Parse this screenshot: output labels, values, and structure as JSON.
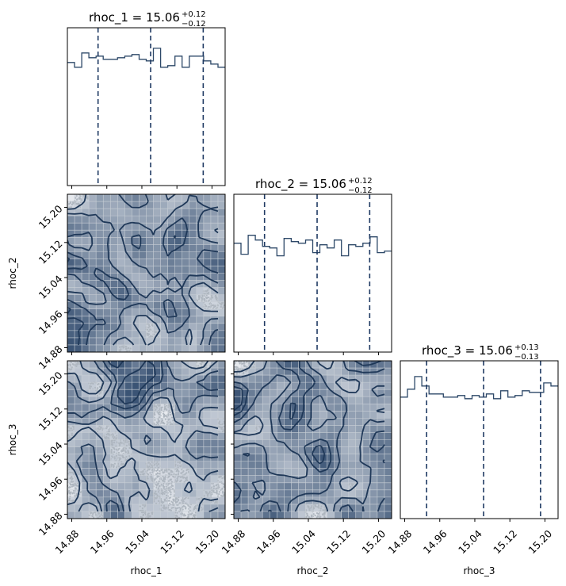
{
  "chart_data": {
    "type": "corner",
    "parameters": [
      "rhoc_1",
      "rhoc_2",
      "rhoc_3"
    ],
    "range": [
      14.87,
      15.23
    ],
    "ticks": [
      14.88,
      14.96,
      15.04,
      15.12,
      15.2
    ],
    "tick_labels": [
      "14.88",
      "14.96",
      "15.04",
      "15.12",
      "15.20"
    ],
    "titles": [
      {
        "param": "rhoc_1",
        "median": "15.06",
        "plus": "+0.12",
        "minus": "−0.12"
      },
      {
        "param": "rhoc_2",
        "median": "15.06",
        "plus": "+0.12",
        "minus": "−0.12"
      },
      {
        "param": "rhoc_3",
        "median": "15.06",
        "plus": "+0.13",
        "minus": "−0.13"
      }
    ],
    "quantiles": [
      [
        14.94,
        15.06,
        15.18
      ],
      [
        14.94,
        15.06,
        15.18
      ],
      [
        14.93,
        15.06,
        15.19
      ]
    ],
    "histograms": [
      [
        0.78,
        0.75,
        0.84,
        0.81,
        0.82,
        0.8,
        0.8,
        0.81,
        0.82,
        0.83,
        0.8,
        0.79,
        0.87,
        0.75,
        0.76,
        0.82,
        0.75,
        0.82,
        0.82,
        0.79,
        0.77,
        0.75
      ],
      [
        0.69,
        0.62,
        0.74,
        0.71,
        0.67,
        0.66,
        0.61,
        0.72,
        0.7,
        0.69,
        0.71,
        0.63,
        0.68,
        0.66,
        0.71,
        0.61,
        0.68,
        0.67,
        0.69,
        0.73,
        0.63,
        0.64
      ],
      [
        0.77,
        0.82,
        0.9,
        0.84,
        0.79,
        0.79,
        0.77,
        0.77,
        0.78,
        0.76,
        0.78,
        0.77,
        0.79,
        0.76,
        0.81,
        0.77,
        0.78,
        0.81,
        0.8,
        0.8,
        0.86,
        0.84
      ]
    ],
    "contour_pairs": [
      {
        "x": "rhoc_1",
        "y": "rhoc_2"
      },
      {
        "x": "rhoc_1",
        "y": "rhoc_3"
      },
      {
        "x": "rhoc_2",
        "y": "rhoc_3"
      }
    ],
    "colors": {
      "line": "#2d4868",
      "quantile": "#1f3a63",
      "contour": "#1f3858",
      "fill_dark": "#3b5475",
      "fill_light": "#e6e9ee"
    }
  }
}
